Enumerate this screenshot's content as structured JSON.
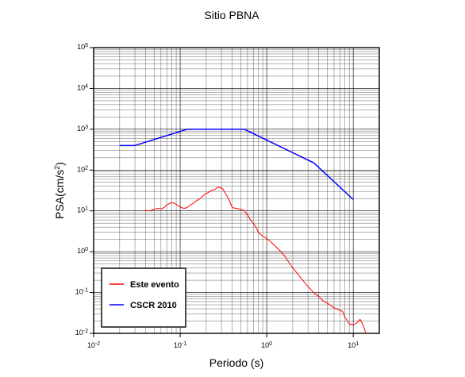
{
  "chart_data": {
    "type": "line",
    "title": "Sitio PBNA",
    "xlabel": "Periodo (s)",
    "ylabel": "PSA(cm/s",
    "ylabel_sup": "2",
    "ylabel_end": ")",
    "xscale": "log",
    "yscale": "log",
    "xlim": [
      0.01,
      20
    ],
    "ylim": [
      0.01,
      100000
    ],
    "grid": true,
    "legend_position": "bottom-left",
    "x_ticks": [
      {
        "base": "10",
        "exp": "-2",
        "value": 0.01
      },
      {
        "base": "10",
        "exp": "-1",
        "value": 0.1
      },
      {
        "base": "10",
        "exp": "0",
        "value": 1
      },
      {
        "base": "10",
        "exp": "1",
        "value": 10
      }
    ],
    "y_ticks": [
      {
        "base": "10",
        "exp": "-2",
        "value": 0.01
      },
      {
        "base": "10",
        "exp": "-1",
        "value": 0.1
      },
      {
        "base": "10",
        "exp": "0",
        "value": 1
      },
      {
        "base": "10",
        "exp": "1",
        "value": 10
      },
      {
        "base": "10",
        "exp": "2",
        "value": 100
      },
      {
        "base": "10",
        "exp": "3",
        "value": 1000
      },
      {
        "base": "10",
        "exp": "4",
        "value": 10000
      },
      {
        "base": "10",
        "exp": "5",
        "value": 100000
      }
    ],
    "series": [
      {
        "name": "Este evento",
        "color": "#ff0000",
        "x": [
          0.037,
          0.04,
          0.045,
          0.05,
          0.055,
          0.06,
          0.065,
          0.07,
          0.075,
          0.08,
          0.085,
          0.09,
          0.1,
          0.11,
          0.12,
          0.13,
          0.14,
          0.15,
          0.17,
          0.19,
          0.21,
          0.23,
          0.25,
          0.27,
          0.29,
          0.31,
          0.34,
          0.37,
          0.4,
          0.45,
          0.5,
          0.55,
          0.6,
          0.65,
          0.7,
          0.75,
          0.8,
          0.9,
          1.0,
          1.1,
          1.2,
          1.4,
          1.6,
          1.8,
          2.0,
          2.3,
          2.6,
          3.0,
          3.5,
          4.0,
          4.5,
          5.0,
          5.5,
          6.0,
          6.5,
          7.0,
          7.5,
          8.0,
          9.0,
          10.0,
          11.0,
          12.0,
          13.0,
          14.0
        ],
        "y": [
          10,
          10.2,
          10,
          11,
          11.5,
          11.2,
          12,
          14,
          15,
          16,
          15.5,
          14.5,
          12.5,
          11.5,
          12,
          14,
          15,
          17,
          20,
          25,
          28,
          32,
          33,
          38,
          37,
          35,
          25,
          18,
          12,
          11.5,
          11,
          10,
          8,
          6,
          5,
          4,
          3,
          2.4,
          2.1,
          1.8,
          1.5,
          1.1,
          0.8,
          0.55,
          0.4,
          0.28,
          0.2,
          0.14,
          0.1,
          0.08,
          0.062,
          0.055,
          0.048,
          0.042,
          0.04,
          0.036,
          0.035,
          0.025,
          0.017,
          0.016,
          0.018,
          0.022,
          0.016,
          0.01
        ]
      },
      {
        "name": "CSCR 2010",
        "color": "#0000ff",
        "x": [
          0.02,
          0.03,
          0.12,
          0.55,
          3.5,
          10
        ],
        "y": [
          400,
          400,
          1000,
          1000,
          150,
          19
        ]
      }
    ]
  }
}
